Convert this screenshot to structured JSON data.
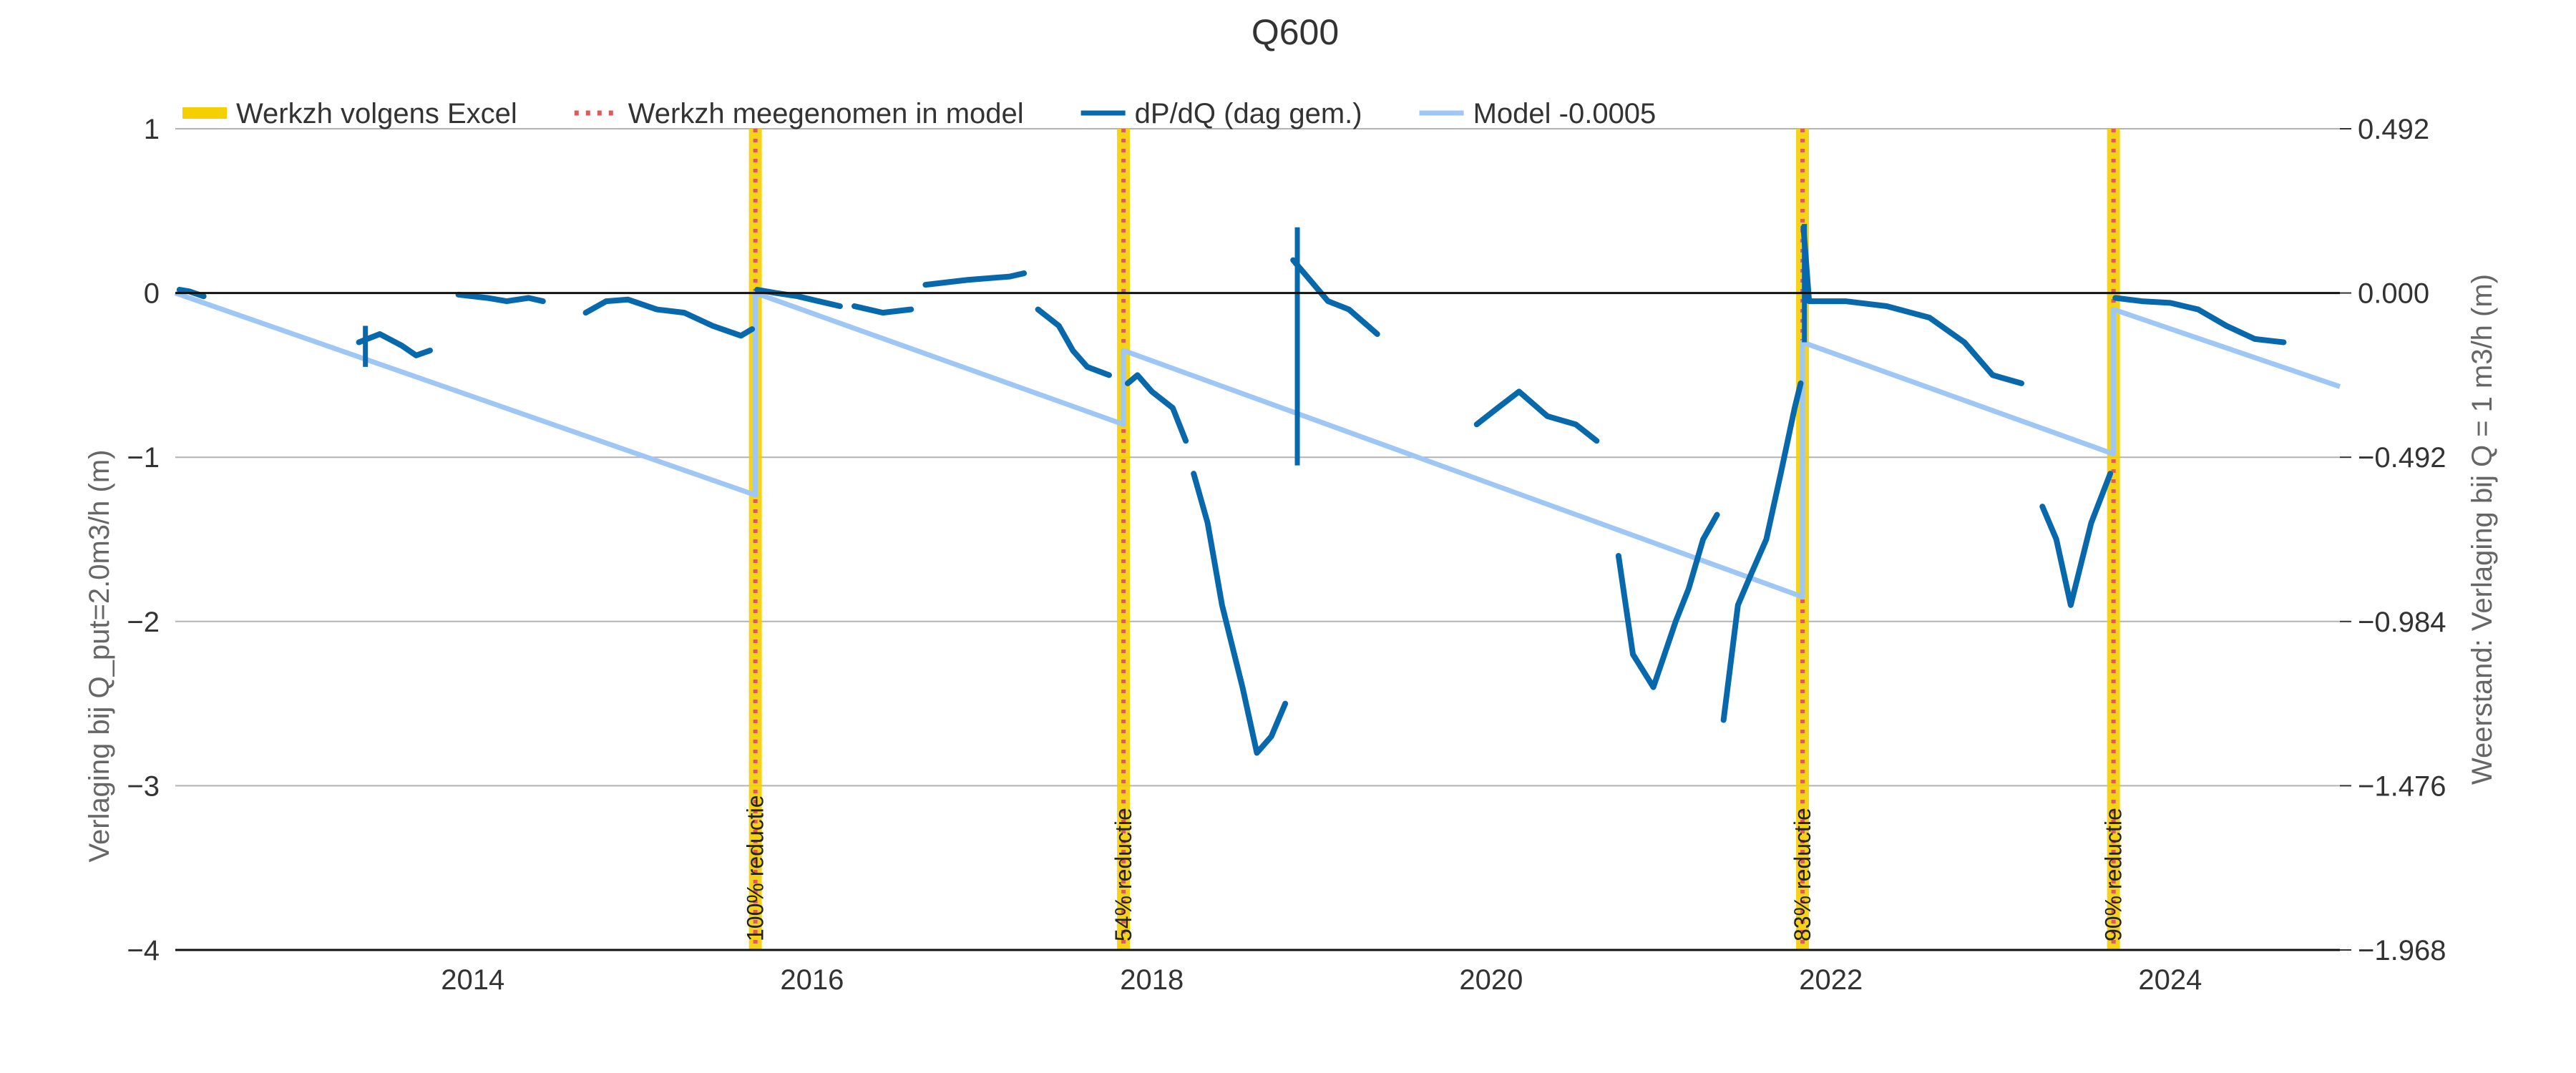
{
  "chart_data": {
    "type": "line",
    "title": "Q600",
    "ylabel": "Verlaging bij Q_put=2.0m3/h (m)",
    "y2label": "Weerstand: Verlaging bij Q = 1 m3/h (m)",
    "xlim": [
      "2012-04-01",
      "2024-12-31"
    ],
    "ylim": [
      -4,
      1
    ],
    "x_ticks": [
      "2014",
      "2016",
      "2018",
      "2020",
      "2022",
      "2024"
    ],
    "y_ticks": [
      "1",
      "0",
      "−1",
      "−2",
      "−3",
      "−4"
    ],
    "y2_ticks": [
      "0.492",
      "0.000",
      "−0.492",
      "−0.984",
      "−1.476",
      "−1.968"
    ],
    "grid": true,
    "legend_position": "top",
    "legend": [
      {
        "label": "Werkzh volgens Excel",
        "style": "thick-solid",
        "color": "#f5d000"
      },
      {
        "label": "Werkzh meegenomen in model",
        "style": "dotted",
        "color": "#e05a5a"
      },
      {
        "label": "dP/dQ (dag gem.)",
        "style": "solid",
        "color": "#0868ac"
      },
      {
        "label": "Model -0.0005",
        "style": "solid",
        "color": "#9ec7f5"
      }
    ],
    "events": [
      {
        "date": "2015-09-01",
        "label": "100% reductie"
      },
      {
        "date": "2017-11-01",
        "label": "54% reductie"
      },
      {
        "date": "2021-11-01",
        "label": "83% reductie"
      },
      {
        "date": "2023-09-01",
        "label": "90% reductie"
      }
    ],
    "series": [
      {
        "name": "Model -0.0005",
        "color": "#9ec7f5",
        "points": [
          [
            "2012-04-01",
            0.0
          ],
          [
            "2015-09-01",
            -1.23
          ],
          [
            "2015-09-01",
            0.0
          ],
          [
            "2017-11-01",
            -0.8
          ],
          [
            "2017-11-01",
            -0.35
          ],
          [
            "2021-11-01",
            -1.85
          ],
          [
            "2021-11-01",
            -0.3
          ],
          [
            "2023-09-01",
            -0.98
          ],
          [
            "2023-09-01",
            -0.1
          ],
          [
            "2024-12-31",
            -0.57
          ]
        ]
      },
      {
        "name": "dP/dQ (dag gem.)",
        "color": "#0868ac",
        "segments": [
          [
            [
              "2012-04-10",
              0.02
            ],
            [
              "2012-05-01",
              0.01
            ],
            [
              "2012-06-01",
              -0.02
            ]
          ],
          [
            [
              "2013-05-01",
              -0.3
            ],
            [
              "2013-06-15",
              -0.25
            ],
            [
              "2013-08-01",
              -0.32
            ],
            [
              "2013-09-01",
              -0.38
            ],
            [
              "2013-10-01",
              -0.35
            ]
          ],
          [
            [
              "2013-12-01",
              -0.01
            ],
            [
              "2014-02-01",
              -0.03
            ],
            [
              "2014-03-15",
              -0.05
            ],
            [
              "2014-05-01",
              -0.03
            ],
            [
              "2014-06-01",
              -0.05
            ]
          ],
          [
            [
              "2014-09-01",
              -0.12
            ],
            [
              "2014-10-15",
              -0.05
            ],
            [
              "2014-12-01",
              -0.04
            ],
            [
              "2015-02-01",
              -0.1
            ],
            [
              "2015-04-01",
              -0.12
            ],
            [
              "2015-06-01",
              -0.2
            ],
            [
              "2015-08-01",
              -0.26
            ],
            [
              "2015-08-25",
              -0.22
            ]
          ],
          [
            [
              "2015-09-05",
              0.02
            ],
            [
              "2015-10-15",
              0.0
            ],
            [
              "2015-12-01",
              -0.02
            ],
            [
              "2016-01-15",
              -0.05
            ],
            [
              "2016-03-01",
              -0.08
            ]
          ],
          [
            [
              "2016-04-01",
              -0.08
            ],
            [
              "2016-06-01",
              -0.12
            ],
            [
              "2016-08-01",
              -0.1
            ]
          ],
          [
            [
              "2016-09-01",
              0.05
            ],
            [
              "2016-12-01",
              0.08
            ],
            [
              "2017-03-01",
              0.1
            ],
            [
              "2017-04-01",
              0.12
            ]
          ],
          [
            [
              "2017-05-01",
              -0.1
            ],
            [
              "2017-06-15",
              -0.2
            ],
            [
              "2017-07-15",
              -0.35
            ],
            [
              "2017-08-15",
              -0.45
            ],
            [
              "2017-10-01",
              -0.5
            ]
          ],
          [
            [
              "2017-11-10",
              -0.55
            ],
            [
              "2017-12-01",
              -0.5
            ],
            [
              "2018-01-01",
              -0.6
            ],
            [
              "2018-02-15",
              -0.7
            ],
            [
              "2018-03-15",
              -0.9
            ]
          ],
          [
            [
              "2018-04-01",
              -1.1
            ],
            [
              "2018-05-01",
              -1.4
            ],
            [
              "2018-06-01",
              -1.9
            ],
            [
              "2018-07-15",
              -2.4
            ],
            [
              "2018-08-15",
              -2.8
            ],
            [
              "2018-09-15",
              -2.7
            ],
            [
              "2018-10-15",
              -2.5
            ]
          ],
          [
            [
              "2018-11-01",
              0.2
            ],
            [
              "2018-12-01",
              0.1
            ],
            [
              "2019-01-15",
              -0.05
            ],
            [
              "2019-03-01",
              -0.1
            ],
            [
              "2019-05-01",
              -0.25
            ]
          ],
          [
            [
              "2019-12-01",
              -0.8
            ],
            [
              "2020-01-15",
              -0.7
            ],
            [
              "2020-03-01",
              -0.6
            ],
            [
              "2020-05-01",
              -0.75
            ],
            [
              "2020-07-01",
              -0.8
            ],
            [
              "2020-08-15",
              -0.9
            ]
          ],
          [
            [
              "2020-10-01",
              -1.6
            ],
            [
              "2020-11-01",
              -2.2
            ],
            [
              "2020-12-15",
              -2.4
            ],
            [
              "2021-02-01",
              -2.0
            ],
            [
              "2021-03-01",
              -1.8
            ],
            [
              "2021-04-01",
              -1.5
            ],
            [
              "2021-05-01",
              -1.35
            ]
          ],
          [
            [
              "2021-05-15",
              -2.6
            ],
            [
              "2021-06-15",
              -1.9
            ],
            [
              "2021-07-15",
              -1.7
            ],
            [
              "2021-08-15",
              -1.5
            ],
            [
              "2021-09-15",
              -1.1
            ],
            [
              "2021-10-15",
              -0.7
            ],
            [
              "2021-10-28",
              -0.55
            ]
          ],
          [
            [
              "2021-11-03",
              0.4
            ],
            [
              "2021-11-15",
              -0.05
            ],
            [
              "2022-02-01",
              -0.05
            ],
            [
              "2022-05-01",
              -0.08
            ],
            [
              "2022-08-01",
              -0.15
            ],
            [
              "2022-10-15",
              -0.3
            ],
            [
              "2022-12-15",
              -0.5
            ],
            [
              "2023-02-15",
              -0.55
            ]
          ],
          [
            [
              "2023-04-01",
              -1.3
            ],
            [
              "2023-05-01",
              -1.5
            ],
            [
              "2023-06-01",
              -1.9
            ],
            [
              "2023-07-15",
              -1.4
            ],
            [
              "2023-08-25",
              -1.1
            ]
          ],
          [
            [
              "2023-09-05",
              -0.03
            ],
            [
              "2023-11-01",
              -0.05
            ],
            [
              "2024-01-01",
              -0.06
            ],
            [
              "2024-03-01",
              -0.1
            ],
            [
              "2024-05-01",
              -0.2
            ],
            [
              "2024-07-01",
              -0.28
            ],
            [
              "2024-09-01",
              -0.3
            ]
          ]
        ],
        "spikes": [
          [
            "2018-11-10",
            -1.05,
            0.4
          ],
          [
            "2021-11-05",
            -0.3,
            0.42
          ],
          [
            "2013-05-15",
            -0.45,
            -0.2
          ]
        ]
      }
    ]
  }
}
